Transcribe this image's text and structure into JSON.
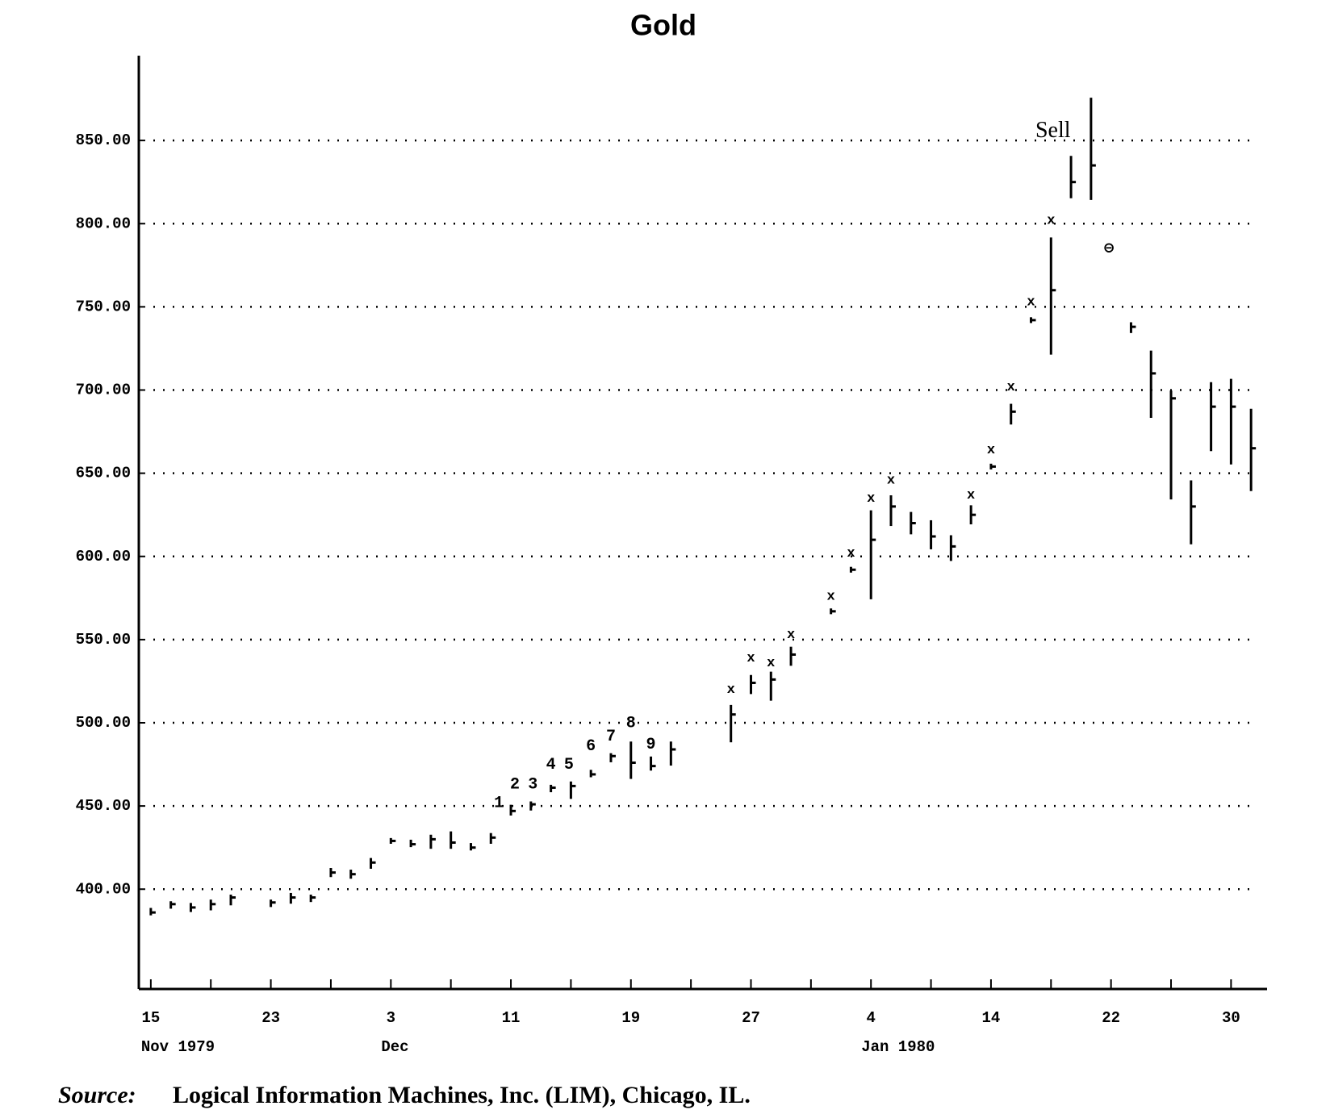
{
  "chart_data": {
    "type": "ohlc",
    "title": "Gold",
    "x": [
      0,
      1,
      2,
      3,
      4,
      6,
      7,
      8,
      9,
      10,
      11,
      12,
      13,
      14,
      15,
      16,
      17,
      18,
      19,
      20,
      21,
      22,
      23,
      24,
      25,
      26,
      29,
      30,
      31,
      32,
      34,
      35,
      36,
      37,
      38,
      39,
      40,
      41,
      42,
      43,
      44,
      45,
      46,
      47,
      49,
      50,
      51,
      52,
      53,
      54,
      55
    ],
    "high": [
      388,
      392,
      391,
      393,
      396,
      393,
      397,
      396,
      412,
      411,
      418,
      430,
      429,
      432,
      434,
      427,
      433,
      450,
      452,
      462,
      464,
      471,
      481,
      488,
      479,
      488,
      510,
      528,
      530,
      545,
      568,
      593,
      627,
      636,
      626,
      621,
      612,
      630,
      655,
      691,
      743,
      791,
      840,
      875,
      740,
      723,
      699,
      645,
      704,
      706,
      688
    ],
    "low": [
      385,
      389,
      387,
      388,
      391,
      390,
      392,
      393,
      408,
      407,
      413,
      428,
      426,
      425,
      425,
      424,
      428,
      445,
      448,
      459,
      455,
      468,
      477,
      467,
      472,
      475,
      489,
      518,
      514,
      535,
      566,
      591,
      575,
      619,
      614,
      605,
      598,
      620,
      653,
      680,
      741,
      722,
      816,
      815,
      735,
      684,
      635,
      608,
      664,
      656,
      640
    ],
    "close": [
      386,
      391,
      389,
      391,
      395,
      392,
      395,
      395,
      410,
      409,
      416,
      429,
      427,
      430,
      428,
      425,
      431,
      447,
      451,
      461,
      462,
      469,
      480,
      476,
      474,
      484,
      505,
      524,
      526,
      541,
      567,
      592,
      610,
      630,
      620,
      612,
      606,
      625,
      654,
      687,
      742,
      760,
      825,
      835,
      738,
      710,
      695,
      630,
      690,
      690,
      665
    ],
    "xlim": [
      -0.6,
      55.8
    ],
    "xticks": [
      {
        "value": 0,
        "label": "15"
      },
      {
        "value": 6,
        "label": "23"
      },
      {
        "value": 12,
        "label": "3"
      },
      {
        "value": 18,
        "label": "11"
      },
      {
        "value": 24,
        "label": "19"
      },
      {
        "value": 30,
        "label": "27"
      },
      {
        "value": 36,
        "label": "4"
      },
      {
        "value": 42,
        "label": "14"
      },
      {
        "value": 48,
        "label": "22"
      },
      {
        "value": 54,
        "label": "30"
      }
    ],
    "xminorticks": [
      3,
      9,
      15,
      21,
      27,
      33,
      39,
      45,
      51
    ],
    "xgroups": [
      {
        "value": 0,
        "label": "Nov 1979"
      },
      {
        "value": 12,
        "label": "Dec"
      },
      {
        "value": 36,
        "label": "Jan 1980"
      }
    ],
    "ylim": [
      340,
      900
    ],
    "yticks": [
      {
        "value": 400,
        "label": "400.00"
      },
      {
        "value": 450,
        "label": "450.00"
      },
      {
        "value": 500,
        "label": "500.00"
      },
      {
        "value": 550,
        "label": "550.00"
      },
      {
        "value": 600,
        "label": "600.00"
      },
      {
        "value": 650,
        "label": "650.00"
      },
      {
        "value": 700,
        "label": "700.00"
      },
      {
        "value": 750,
        "label": "750.00"
      },
      {
        "value": 800,
        "label": "800.00"
      },
      {
        "value": 850,
        "label": "850.00"
      }
    ],
    "grid": true,
    "color": "#000000",
    "annotations": [
      {
        "text": "1",
        "x": 17.4,
        "y": 452
      },
      {
        "text": "2",
        "x": 18.2,
        "y": 463
      },
      {
        "text": "3",
        "x": 19.1,
        "y": 463
      },
      {
        "text": "4",
        "x": 20.0,
        "y": 475
      },
      {
        "text": "5",
        "x": 20.9,
        "y": 475
      },
      {
        "text": "6",
        "x": 22.0,
        "y": 486
      },
      {
        "text": "7",
        "x": 23.0,
        "y": 492
      },
      {
        "text": "8",
        "x": 24.0,
        "y": 500
      },
      {
        "text": "9",
        "x": 25.0,
        "y": 487
      },
      {
        "text": "x",
        "x": 29,
        "y": 520
      },
      {
        "text": "x",
        "x": 30,
        "y": 539
      },
      {
        "text": "x",
        "x": 31,
        "y": 536
      },
      {
        "text": "x",
        "x": 32,
        "y": 553
      },
      {
        "text": "x",
        "x": 34,
        "y": 576
      },
      {
        "text": "x",
        "x": 35,
        "y": 602
      },
      {
        "text": "x",
        "x": 36,
        "y": 635
      },
      {
        "text": "x",
        "x": 37,
        "y": 646
      },
      {
        "text": "x",
        "x": 41,
        "y": 637
      },
      {
        "text": "x",
        "x": 42,
        "y": 664
      },
      {
        "text": "x",
        "x": 43,
        "y": 702
      },
      {
        "text": "x",
        "x": 44,
        "y": 753
      },
      {
        "text": "x",
        "x": 45,
        "y": 802
      },
      {
        "text": "Sell",
        "x": 45.1,
        "y": 855
      },
      {
        "text": "⊖",
        "x": 47.9,
        "y": 785
      }
    ],
    "source_label": "Source:",
    "source": "Logical Information Machines, Inc. (LIM), Chicago, IL."
  }
}
